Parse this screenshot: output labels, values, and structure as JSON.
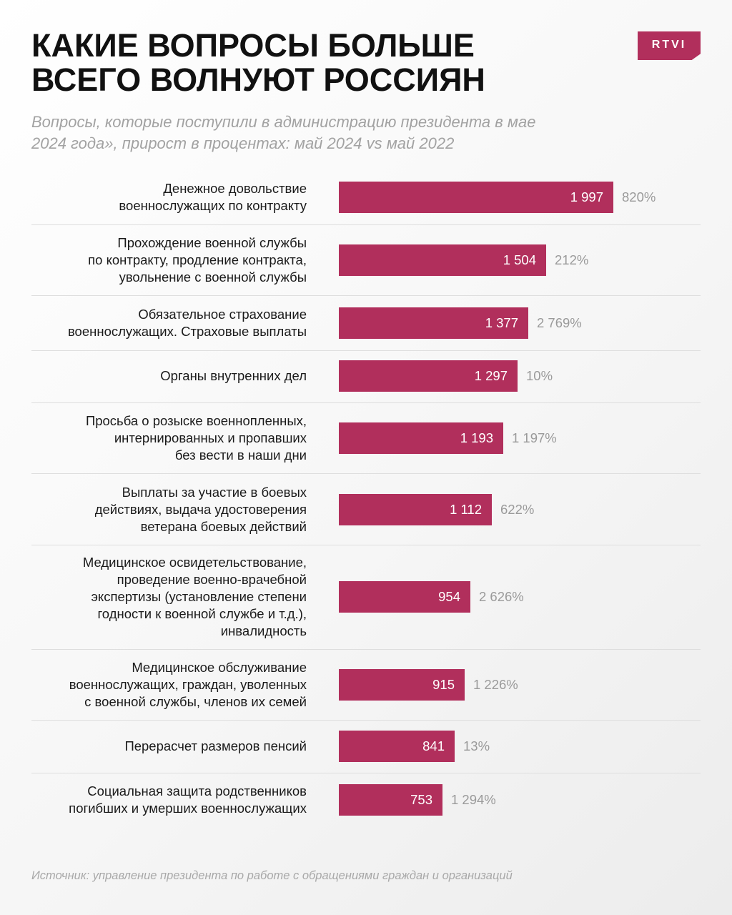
{
  "header": {
    "title_lines": [
      "КАКИЕ ВОПРОСЫ БОЛЬШЕ",
      "ВСЕГО ВОЛНУЮТ РОССИЯН"
    ],
    "subtitle_lines": [
      "Вопросы, которые поступили в администрацию президента в мае",
      "2024 года», прирост в процентах: май 2024 vs май 2022"
    ],
    "logo_text": "RTVI"
  },
  "colors": {
    "accent": "#b12f5c",
    "text": "#111111",
    "muted": "#9a9a9a"
  },
  "chart_data": {
    "type": "bar",
    "orientation": "horizontal",
    "title": "КАКИЕ ВОПРОСЫ БОЛЬШЕ ВСЕГО ВОЛНУЮТ РОССИЯН",
    "value_unit": "обращений",
    "xlim": [
      0,
      2000
    ],
    "rows": [
      {
        "label_lines": [
          "Денежное довольствие",
          "военнослужащих по контракту"
        ],
        "value": 1997,
        "value_label": "1 997",
        "growth": "820%"
      },
      {
        "label_lines": [
          "Прохождение военной службы",
          "по контракту, продление контракта,",
          "увольнение с военной службы"
        ],
        "value": 1504,
        "value_label": "1 504",
        "growth": "212%"
      },
      {
        "label_lines": [
          "Обязательное страхование",
          "военнослужащих. Страховые выплаты"
        ],
        "value": 1377,
        "value_label": "1 377",
        "growth": "2 769%"
      },
      {
        "label_lines": [
          "Органы внутренних дел"
        ],
        "value": 1297,
        "value_label": "1 297",
        "growth": "10%"
      },
      {
        "label_lines": [
          "Просьба о розыске военнопленных,",
          "интернированных и пропавших",
          "без вести в наши дни"
        ],
        "value": 1193,
        "value_label": "1 193",
        "growth": "1 197%"
      },
      {
        "label_lines": [
          "Выплаты за участие в боевых",
          "действиях, выдача удостоверения",
          "ветерана боевых действий"
        ],
        "value": 1112,
        "value_label": "1 112",
        "growth": "622%"
      },
      {
        "label_lines": [
          "Медицинское освидетельствование,",
          "проведение военно-врачебной",
          "экспертизы (установление степени",
          "годности к военной службе и т.д.),",
          "инвалидность"
        ],
        "value": 954,
        "value_label": "954",
        "growth": "2 626%"
      },
      {
        "label_lines": [
          "Медицинское обслуживание",
          "военнослужащих, граждан, уволенных",
          "с военной службы, членов их семей"
        ],
        "value": 915,
        "value_label": "915",
        "growth": "1 226%"
      },
      {
        "label_lines": [
          "Перерасчет размеров пенсий"
        ],
        "value": 841,
        "value_label": "841",
        "growth": "13%"
      },
      {
        "label_lines": [
          "Социальная защита родственников",
          "погибших и умерших военнослужащих"
        ],
        "value": 753,
        "value_label": "753",
        "growth": "1 294%"
      }
    ]
  },
  "footer": {
    "source": "Источник: управление президента по работе с обращениями граждан и организаций"
  }
}
